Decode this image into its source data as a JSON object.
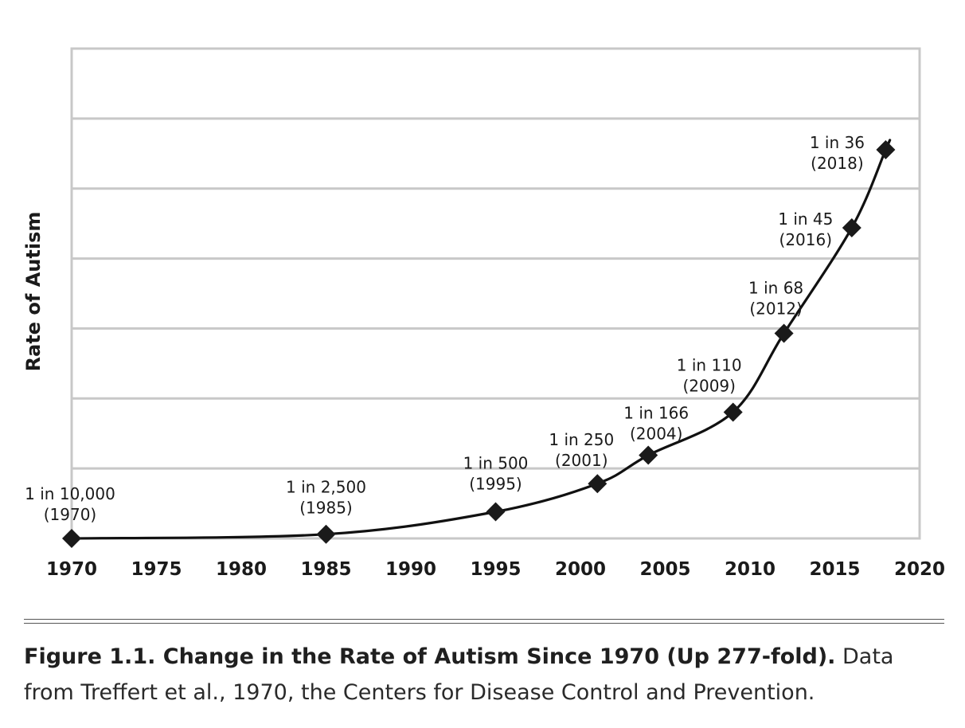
{
  "chart_data": {
    "type": "line",
    "ylabel": "Rate of Autism",
    "xlabel": "",
    "xlim": [
      1970,
      2020
    ],
    "x_ticks": [
      "1970",
      "1975",
      "1980",
      "1985",
      "1990",
      "1995",
      "2000",
      "2005",
      "2010",
      "2015",
      "2020"
    ],
    "y_ticks_shown": false,
    "grid": true,
    "series": [
      {
        "x": [
          1970,
          1985,
          1995,
          2001,
          2004,
          2009,
          2012,
          2016,
          2018
        ],
        "prevalence_denominator": [
          10000,
          2500,
          500,
          250,
          166,
          110,
          68,
          45,
          36
        ],
        "marker": "diamond",
        "curve": "smooth fitted"
      }
    ],
    "point_labels": [
      {
        "rate": "1 in 10,000",
        "year": "(1970)"
      },
      {
        "rate": "1 in 2,500",
        "year": "(1985)"
      },
      {
        "rate": "1 in 500",
        "year": "(1995)"
      },
      {
        "rate": "1 in 250",
        "year": "(2001)"
      },
      {
        "rate": "1 in 166",
        "year": "(2004)"
      },
      {
        "rate": "1 in 110",
        "year": "(2009)"
      },
      {
        "rate": "1 in 68",
        "year": "(2012)"
      },
      {
        "rate": "1 in 45",
        "year": "(2016)"
      },
      {
        "rate": "1 in 36",
        "year": "(2018)"
      }
    ]
  },
  "caption": {
    "title": "Figure 1.1. Change in the Rate of Autism Since 1970 (Up 277-fold).",
    "text": " Data from Treffert et al., 1970, the Centers for Disease Control and Prevention."
  }
}
